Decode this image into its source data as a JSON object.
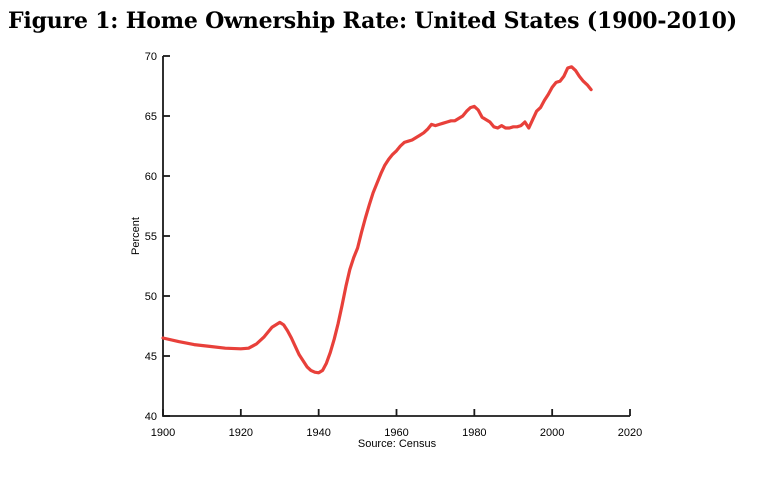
{
  "title": "Figure 1: Home Ownership Rate: United States (1900-2010)",
  "chart_data": {
    "type": "line",
    "title": "Figure 1: Home Ownership Rate: United States (1900-2010)",
    "xlabel": "",
    "ylabel": "Percent",
    "source_note": "Source: Census",
    "xlim": [
      1900,
      2020
    ],
    "ylim": [
      40,
      70
    ],
    "xticks": [
      1900,
      1920,
      1940,
      1960,
      1980,
      2000,
      2020
    ],
    "yticks": [
      40,
      45,
      50,
      55,
      60,
      65,
      70
    ],
    "grid": false,
    "legend_position": "none",
    "line_color": "#e8403a",
    "axis_color": "#1a1a1a",
    "series": [
      {
        "name": "Home ownership rate (percent)",
        "points": [
          [
            1900,
            46.5
          ],
          [
            1904,
            46.2
          ],
          [
            1908,
            45.95
          ],
          [
            1912,
            45.8
          ],
          [
            1916,
            45.65
          ],
          [
            1920,
            45.6
          ],
          [
            1922,
            45.65
          ],
          [
            1924,
            46.0
          ],
          [
            1926,
            46.6
          ],
          [
            1928,
            47.4
          ],
          [
            1930,
            47.8
          ],
          [
            1931,
            47.6
          ],
          [
            1932,
            47.1
          ],
          [
            1933,
            46.5
          ],
          [
            1934,
            45.8
          ],
          [
            1935,
            45.1
          ],
          [
            1936,
            44.6
          ],
          [
            1937,
            44.1
          ],
          [
            1938,
            43.8
          ],
          [
            1939,
            43.65
          ],
          [
            1940,
            43.6
          ],
          [
            1941,
            43.8
          ],
          [
            1942,
            44.4
          ],
          [
            1943,
            45.3
          ],
          [
            1944,
            46.4
          ],
          [
            1945,
            47.7
          ],
          [
            1946,
            49.2
          ],
          [
            1947,
            50.8
          ],
          [
            1948,
            52.2
          ],
          [
            1949,
            53.2
          ],
          [
            1950,
            54.0
          ],
          [
            1951,
            55.3
          ],
          [
            1952,
            56.5
          ],
          [
            1953,
            57.6
          ],
          [
            1954,
            58.6
          ],
          [
            1955,
            59.4
          ],
          [
            1956,
            60.2
          ],
          [
            1957,
            60.9
          ],
          [
            1958,
            61.4
          ],
          [
            1959,
            61.8
          ],
          [
            1960,
            62.1
          ],
          [
            1961,
            62.5
          ],
          [
            1962,
            62.8
          ],
          [
            1963,
            62.9
          ],
          [
            1964,
            63.0
          ],
          [
            1965,
            63.2
          ],
          [
            1966,
            63.4
          ],
          [
            1967,
            63.6
          ],
          [
            1968,
            63.9
          ],
          [
            1969,
            64.3
          ],
          [
            1970,
            64.2
          ],
          [
            1971,
            64.3
          ],
          [
            1972,
            64.4
          ],
          [
            1973,
            64.5
          ],
          [
            1974,
            64.6
          ],
          [
            1975,
            64.6
          ],
          [
            1976,
            64.8
          ],
          [
            1977,
            65.0
          ],
          [
            1978,
            65.4
          ],
          [
            1979,
            65.7
          ],
          [
            1980,
            65.8
          ],
          [
            1981,
            65.5
          ],
          [
            1982,
            64.9
          ],
          [
            1983,
            64.7
          ],
          [
            1984,
            64.5
          ],
          [
            1985,
            64.1
          ],
          [
            1986,
            64.0
          ],
          [
            1987,
            64.2
          ],
          [
            1988,
            64.0
          ],
          [
            1989,
            64.0
          ],
          [
            1990,
            64.1
          ],
          [
            1991,
            64.1
          ],
          [
            1992,
            64.2
          ],
          [
            1993,
            64.5
          ],
          [
            1994,
            64.0
          ],
          [
            1995,
            64.7
          ],
          [
            1996,
            65.4
          ],
          [
            1997,
            65.7
          ],
          [
            1998,
            66.3
          ],
          [
            1999,
            66.8
          ],
          [
            2000,
            67.4
          ],
          [
            2001,
            67.8
          ],
          [
            2002,
            67.9
          ],
          [
            2003,
            68.3
          ],
          [
            2004,
            69.0
          ],
          [
            2005,
            69.1
          ],
          [
            2006,
            68.8
          ],
          [
            2007,
            68.3
          ],
          [
            2008,
            67.9
          ],
          [
            2009,
            67.6
          ],
          [
            2010,
            67.2
          ]
        ]
      }
    ]
  }
}
